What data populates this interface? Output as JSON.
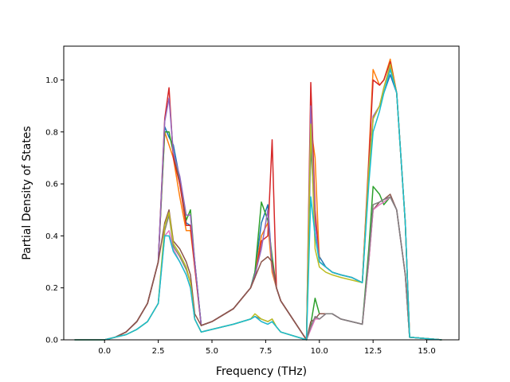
{
  "chart_data": {
    "type": "line",
    "xlabel": "Frequency (THz)",
    "ylabel": "Partial Density of States",
    "xlim": [
      -1.9,
      16.5
    ],
    "ylim": [
      0.0,
      1.13
    ],
    "xticks": [
      "0.0",
      "2.5",
      "5.0",
      "7.5",
      "10.0",
      "12.5",
      "15.0"
    ],
    "yticks": [
      "0.0",
      "0.2",
      "0.4",
      "0.6",
      "0.8",
      "1.0"
    ],
    "grid": false,
    "legend": "none",
    "series": [
      {
        "color": "#1f77b4",
        "x": [
          -1.4,
          -0.2,
          0.0,
          0.5,
          1.0,
          1.5,
          2.0,
          2.5,
          2.8,
          3.0,
          3.2,
          3.5,
          3.8,
          4.0,
          4.2,
          4.5,
          5.0,
          6.0,
          6.8,
          7.0,
          7.3,
          7.6,
          7.8,
          8.0,
          8.2,
          9.4,
          9.6,
          9.8,
          10.0,
          10.3,
          10.6,
          11.0,
          11.5,
          12.0,
          12.3,
          12.5,
          12.8,
          13.0,
          13.3,
          13.6,
          14.0,
          14.2,
          15.7
        ],
        "y": [
          0,
          0,
          0,
          0.01,
          0.03,
          0.07,
          0.14,
          0.3,
          0.82,
          0.78,
          0.75,
          0.62,
          0.45,
          0.44,
          0.3,
          0.055,
          0.07,
          0.12,
          0.2,
          0.26,
          0.45,
          0.52,
          0.28,
          0.2,
          0.15,
          0,
          0.75,
          0.45,
          0.32,
          0.28,
          0.26,
          0.25,
          0.24,
          0.22,
          0.62,
          0.85,
          0.9,
          0.95,
          1.02,
          0.95,
          0.45,
          0.01,
          0
        ]
      },
      {
        "color": "#ff7f0e",
        "x": [
          -1.4,
          -0.2,
          0.0,
          0.5,
          1.0,
          1.5,
          2.0,
          2.5,
          2.8,
          3.0,
          3.2,
          3.5,
          3.8,
          4.0,
          4.2,
          4.5,
          5.0,
          6.0,
          6.8,
          7.0,
          7.3,
          7.6,
          7.8,
          8.0,
          8.2,
          9.4,
          9.6,
          9.8,
          10.0,
          10.3,
          10.6,
          11.0,
          11.5,
          12.0,
          12.3,
          12.5,
          12.8,
          13.0,
          13.3,
          13.6,
          14.0,
          14.2,
          15.7
        ],
        "y": [
          0,
          0,
          0,
          0.01,
          0.03,
          0.07,
          0.14,
          0.3,
          0.8,
          0.75,
          0.7,
          0.55,
          0.42,
          0.42,
          0.28,
          0.055,
          0.07,
          0.12,
          0.2,
          0.25,
          0.4,
          0.45,
          0.26,
          0.2,
          0.15,
          0,
          0.82,
          0.7,
          0.3,
          0.28,
          0.26,
          0.25,
          0.24,
          0.22,
          0.7,
          1.04,
          0.98,
          1.0,
          1.08,
          0.95,
          0.45,
          0.01,
          0
        ]
      },
      {
        "color": "#2ca02c",
        "x": [
          -1.4,
          -0.2,
          0.0,
          0.5,
          1.0,
          1.5,
          2.0,
          2.5,
          2.8,
          3.0,
          3.2,
          3.5,
          3.8,
          4.0,
          4.2,
          4.5,
          5.0,
          6.0,
          6.8,
          7.0,
          7.3,
          7.6,
          7.8,
          8.0,
          8.2,
          9.4,
          9.6,
          9.8,
          10.0,
          10.3,
          10.6,
          11.0,
          11.5,
          12.0,
          12.3,
          12.5,
          12.8,
          13.0,
          13.3,
          13.6,
          14.0,
          14.2,
          15.7
        ],
        "y": [
          0,
          0,
          0,
          0.01,
          0.03,
          0.07,
          0.14,
          0.3,
          0.8,
          0.8,
          0.72,
          0.6,
          0.46,
          0.5,
          0.3,
          0.055,
          0.07,
          0.12,
          0.2,
          0.26,
          0.53,
          0.46,
          0.32,
          0.2,
          0.15,
          0,
          0.06,
          0.16,
          0.1,
          0.1,
          0.1,
          0.08,
          0.07,
          0.06,
          0.35,
          0.59,
          0.56,
          0.52,
          0.55,
          0.5,
          0.25,
          0.01,
          0
        ]
      },
      {
        "color": "#d62728",
        "x": [
          -1.4,
          -0.2,
          0.0,
          0.5,
          1.0,
          1.5,
          2.0,
          2.5,
          2.8,
          3.0,
          3.2,
          3.5,
          3.8,
          4.0,
          4.2,
          4.5,
          5.0,
          6.0,
          6.8,
          7.0,
          7.3,
          7.6,
          7.8,
          8.0,
          8.2,
          9.4,
          9.6,
          9.8,
          10.0,
          10.3,
          10.6,
          11.0,
          11.5,
          12.0,
          12.3,
          12.5,
          12.8,
          13.0,
          13.3,
          13.6,
          14.0,
          14.2,
          15.7
        ],
        "y": [
          0,
          0,
          0,
          0.01,
          0.03,
          0.07,
          0.14,
          0.3,
          0.85,
          0.97,
          0.7,
          0.6,
          0.44,
          0.44,
          0.28,
          0.055,
          0.07,
          0.12,
          0.2,
          0.24,
          0.38,
          0.4,
          0.77,
          0.2,
          0.15,
          0,
          0.99,
          0.5,
          0.3,
          0.28,
          0.26,
          0.25,
          0.24,
          0.22,
          0.68,
          1.0,
          0.98,
          1.0,
          1.07,
          0.95,
          0.45,
          0.01,
          0
        ]
      },
      {
        "color": "#9467bd",
        "x": [
          -1.4,
          -0.2,
          0.0,
          0.5,
          1.0,
          1.5,
          2.0,
          2.5,
          2.8,
          3.0,
          3.2,
          3.5,
          3.8,
          4.0,
          4.2,
          4.5,
          5.0,
          6.0,
          6.8,
          7.0,
          7.3,
          7.6,
          7.8,
          8.0,
          8.2,
          9.4,
          9.6,
          9.8,
          10.0,
          10.3,
          10.6,
          11.0,
          11.5,
          12.0,
          12.3,
          12.5,
          12.8,
          13.0,
          13.3,
          13.6,
          14.0,
          14.2,
          15.7
        ],
        "y": [
          0,
          0,
          0,
          0.01,
          0.03,
          0.07,
          0.14,
          0.3,
          0.84,
          0.93,
          0.72,
          0.63,
          0.48,
          0.48,
          0.3,
          0.055,
          0.07,
          0.12,
          0.2,
          0.25,
          0.35,
          0.5,
          0.28,
          0.2,
          0.15,
          0,
          0.9,
          0.45,
          0.3,
          0.28,
          0.26,
          0.25,
          0.24,
          0.22,
          0.66,
          0.86,
          0.9,
          0.97,
          1.05,
          0.95,
          0.45,
          0.01,
          0
        ]
      },
      {
        "color": "#8c564b",
        "x": [
          -1.4,
          -0.2,
          0.0,
          0.5,
          1.0,
          1.5,
          2.0,
          2.5,
          2.8,
          3.0,
          3.2,
          3.5,
          3.8,
          4.0,
          4.2,
          4.5,
          5.0,
          6.0,
          6.8,
          7.0,
          7.3,
          7.6,
          7.8,
          8.0,
          8.2,
          9.4,
          9.6,
          9.8,
          10.0,
          10.3,
          10.6,
          11.0,
          11.5,
          12.0,
          12.3,
          12.5,
          12.8,
          13.0,
          13.3,
          13.6,
          14.0,
          14.2,
          15.7
        ],
        "y": [
          0,
          0,
          0,
          0.01,
          0.03,
          0.07,
          0.14,
          0.3,
          0.45,
          0.5,
          0.38,
          0.35,
          0.3,
          0.25,
          0.1,
          0.055,
          0.07,
          0.12,
          0.2,
          0.24,
          0.3,
          0.32,
          0.3,
          0.2,
          0.15,
          0,
          0.07,
          0.08,
          0.1,
          0.1,
          0.1,
          0.08,
          0.07,
          0.06,
          0.3,
          0.5,
          0.53,
          0.54,
          0.56,
          0.5,
          0.25,
          0.01,
          0
        ]
      },
      {
        "color": "#e377c2",
        "x": [
          -1.4,
          -0.2,
          0.0,
          0.5,
          1.0,
          1.5,
          2.0,
          2.5,
          2.8,
          3.0,
          3.2,
          3.5,
          3.8,
          4.0,
          4.2,
          4.5,
          5.0,
          6.0,
          6.8,
          7.0,
          7.3,
          7.6,
          7.8,
          8.0,
          8.2,
          9.4,
          9.6,
          9.8,
          10.0,
          10.3,
          10.6,
          11.0,
          11.5,
          12.0,
          12.3,
          12.5,
          12.8,
          13.0,
          13.3,
          13.6,
          14.0,
          14.2,
          15.7
        ],
        "y": [
          0,
          0,
          0,
          0.01,
          0.02,
          0.04,
          0.07,
          0.14,
          0.4,
          0.42,
          0.35,
          0.3,
          0.25,
          0.2,
          0.08,
          0.03,
          0.04,
          0.06,
          0.08,
          0.09,
          0.07,
          0.06,
          0.07,
          0.05,
          0.03,
          0,
          0.04,
          0.08,
          0.08,
          0.1,
          0.1,
          0.08,
          0.07,
          0.06,
          0.3,
          0.5,
          0.52,
          0.53,
          0.55,
          0.5,
          0.25,
          0.01,
          0
        ]
      },
      {
        "color": "#7f7f7f",
        "x": [
          -1.4,
          -0.2,
          0.0,
          0.5,
          1.0,
          1.5,
          2.0,
          2.5,
          2.8,
          3.0,
          3.2,
          3.5,
          3.8,
          4.0,
          4.2,
          4.5,
          5.0,
          6.0,
          6.8,
          7.0,
          7.3,
          7.6,
          7.8,
          8.0,
          8.2,
          9.4,
          9.6,
          9.8,
          10.0,
          10.3,
          10.6,
          11.0,
          11.5,
          12.0,
          12.3,
          12.5,
          12.8,
          13.0,
          13.3,
          13.6,
          14.0,
          14.2,
          15.7
        ],
        "y": [
          0,
          0,
          0,
          0.01,
          0.02,
          0.04,
          0.07,
          0.14,
          0.42,
          0.48,
          0.36,
          0.32,
          0.27,
          0.22,
          0.08,
          0.03,
          0.04,
          0.06,
          0.08,
          0.09,
          0.08,
          0.07,
          0.08,
          0.05,
          0.03,
          0,
          0.05,
          0.09,
          0.08,
          0.1,
          0.1,
          0.08,
          0.07,
          0.06,
          0.32,
          0.52,
          0.53,
          0.54,
          0.55,
          0.5,
          0.25,
          0.01,
          0
        ]
      },
      {
        "color": "#bcbd22",
        "x": [
          -1.4,
          -0.2,
          0.0,
          0.5,
          1.0,
          1.5,
          2.0,
          2.5,
          2.8,
          3.0,
          3.2,
          3.5,
          3.8,
          4.0,
          4.2,
          4.5,
          5.0,
          6.0,
          6.8,
          7.0,
          7.3,
          7.6,
          7.8,
          8.0,
          8.2,
          9.4,
          9.6,
          9.8,
          10.0,
          10.3,
          10.6,
          11.0,
          11.5,
          12.0,
          12.3,
          12.5,
          12.8,
          13.0,
          13.3,
          13.6,
          14.0,
          14.2,
          15.7
        ],
        "y": [
          0,
          0,
          0,
          0.01,
          0.02,
          0.04,
          0.07,
          0.14,
          0.44,
          0.49,
          0.37,
          0.33,
          0.28,
          0.22,
          0.08,
          0.03,
          0.04,
          0.06,
          0.08,
          0.1,
          0.08,
          0.07,
          0.08,
          0.05,
          0.03,
          0,
          0.83,
          0.35,
          0.28,
          0.26,
          0.25,
          0.24,
          0.23,
          0.22,
          0.65,
          0.85,
          0.9,
          0.97,
          1.06,
          0.95,
          0.45,
          0.01,
          0
        ]
      },
      {
        "color": "#17becf",
        "x": [
          -1.4,
          -0.2,
          0.0,
          0.5,
          1.0,
          1.5,
          2.0,
          2.5,
          2.8,
          3.0,
          3.2,
          3.5,
          3.8,
          4.0,
          4.2,
          4.5,
          5.0,
          6.0,
          6.8,
          7.0,
          7.3,
          7.6,
          7.8,
          8.0,
          8.2,
          9.4,
          9.6,
          9.8,
          10.0,
          10.3,
          10.6,
          11.0,
          11.5,
          12.0,
          12.3,
          12.5,
          12.8,
          13.0,
          13.3,
          13.6,
          14.0,
          14.2,
          15.7
        ],
        "y": [
          0,
          0,
          0,
          0.01,
          0.02,
          0.04,
          0.07,
          0.14,
          0.4,
          0.4,
          0.34,
          0.3,
          0.25,
          0.2,
          0.08,
          0.03,
          0.04,
          0.06,
          0.08,
          0.09,
          0.07,
          0.06,
          0.07,
          0.05,
          0.03,
          0,
          0.55,
          0.4,
          0.3,
          0.28,
          0.26,
          0.25,
          0.24,
          0.22,
          0.6,
          0.8,
          0.88,
          0.95,
          1.04,
          0.95,
          0.45,
          0.01,
          0
        ]
      }
    ]
  }
}
